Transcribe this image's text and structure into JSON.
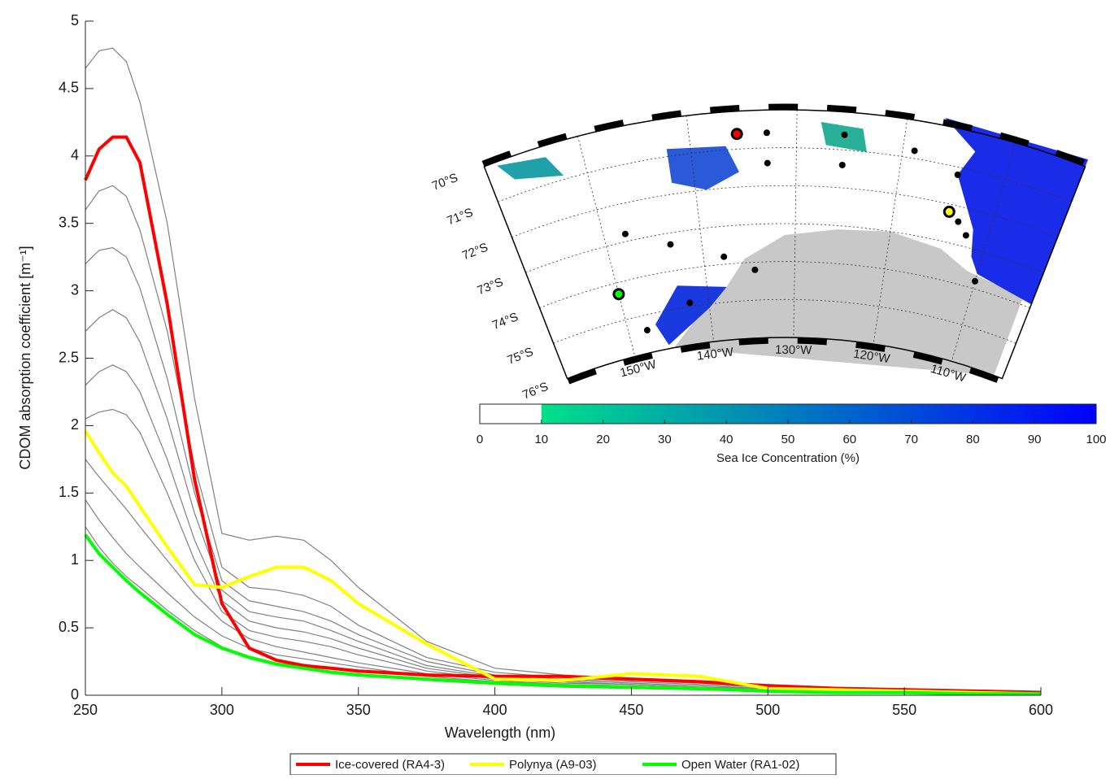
{
  "chart_data": {
    "type": "line",
    "x_label": "Wavelength (nm)",
    "y_label": "CDOM absorption coefficient [m⁻¹]",
    "x": [
      250,
      255,
      260,
      265,
      270,
      280,
      290,
      300,
      310,
      320,
      330,
      340,
      350,
      375,
      400,
      425,
      450,
      475,
      500,
      525,
      550,
      575,
      600
    ],
    "xlim": [
      250,
      600
    ],
    "xticks": [
      250,
      300,
      350,
      400,
      450,
      500,
      550,
      600
    ],
    "ylim": [
      0,
      5
    ],
    "yticks": [
      0,
      0.5,
      1,
      1.5,
      2,
      2.5,
      3,
      3.5,
      4,
      4.5,
      5
    ],
    "background_color": "#808080",
    "background_spectra": [
      [
        4.65,
        4.78,
        4.8,
        4.7,
        4.4,
        3.5,
        2.2,
        1.2,
        1.15,
        1.18,
        1.15,
        1.0,
        0.8,
        0.4,
        0.2,
        0.15,
        0.12,
        0.1,
        0.08,
        0.06,
        0.05,
        0.04,
        0.03
      ],
      [
        3.6,
        3.74,
        3.78,
        3.7,
        3.45,
        2.7,
        1.7,
        0.95,
        0.8,
        0.78,
        0.74,
        0.66,
        0.52,
        0.28,
        0.17,
        0.13,
        0.11,
        0.09,
        0.07,
        0.05,
        0.04,
        0.03,
        0.02
      ],
      [
        3.2,
        3.3,
        3.32,
        3.25,
        3.02,
        2.35,
        1.5,
        0.85,
        0.7,
        0.66,
        0.62,
        0.55,
        0.45,
        0.25,
        0.15,
        0.12,
        0.1,
        0.08,
        0.06,
        0.05,
        0.04,
        0.03,
        0.02
      ],
      [
        2.7,
        2.8,
        2.86,
        2.8,
        2.62,
        2.05,
        1.35,
        0.78,
        0.62,
        0.58,
        0.55,
        0.48,
        0.4,
        0.22,
        0.14,
        0.11,
        0.09,
        0.07,
        0.05,
        0.04,
        0.03,
        0.02,
        0.02
      ],
      [
        2.3,
        2.4,
        2.45,
        2.4,
        2.25,
        1.75,
        1.15,
        0.7,
        0.55,
        0.5,
        0.47,
        0.42,
        0.35,
        0.2,
        0.13,
        0.1,
        0.08,
        0.06,
        0.05,
        0.04,
        0.03,
        0.02,
        0.01
      ],
      [
        2.05,
        2.1,
        2.12,
        2.08,
        1.95,
        1.5,
        1.0,
        0.62,
        0.48,
        0.43,
        0.4,
        0.36,
        0.3,
        0.18,
        0.12,
        0.09,
        0.08,
        0.06,
        0.04,
        0.03,
        0.03,
        0.02,
        0.01
      ],
      [
        1.75,
        1.62,
        1.5,
        1.38,
        1.25,
        1.0,
        0.75,
        0.55,
        0.42,
        0.36,
        0.32,
        0.28,
        0.24,
        0.16,
        0.11,
        0.08,
        0.07,
        0.05,
        0.04,
        0.03,
        0.02,
        0.02,
        0.01
      ],
      [
        1.45,
        1.3,
        1.17,
        1.05,
        0.95,
        0.76,
        0.58,
        0.44,
        0.35,
        0.3,
        0.27,
        0.24,
        0.21,
        0.14,
        0.1,
        0.08,
        0.06,
        0.05,
        0.04,
        0.03,
        0.02,
        0.01,
        0.01
      ],
      [
        1.25,
        1.1,
        0.98,
        0.88,
        0.8,
        0.63,
        0.48,
        0.36,
        0.29,
        0.24,
        0.21,
        0.18,
        0.16,
        0.11,
        0.08,
        0.06,
        0.05,
        0.04,
        0.03,
        0.02,
        0.02,
        0.01,
        0.01
      ]
    ],
    "series": [
      {
        "name": "Ice-covered (RA4-3)",
        "color": "#ff0000",
        "values": [
          3.82,
          4.05,
          4.14,
          4.14,
          3.95,
          2.9,
          1.6,
          0.68,
          0.35,
          0.26,
          0.22,
          0.2,
          0.18,
          0.15,
          0.14,
          0.14,
          0.12,
          0.1,
          0.07,
          0.05,
          0.04,
          0.03,
          0.02
        ]
      },
      {
        "name": "Polynya (A9-03)",
        "color": "#ffff00",
        "values": [
          1.96,
          1.8,
          1.65,
          1.55,
          1.4,
          1.1,
          0.82,
          0.8,
          0.88,
          0.95,
          0.95,
          0.85,
          0.68,
          0.38,
          0.12,
          0.11,
          0.16,
          0.14,
          0.05,
          0.04,
          0.03,
          0.02,
          0.01
        ]
      },
      {
        "name": "Open Water (RA1-02)",
        "color": "#00ff00",
        "values": [
          1.19,
          1.05,
          0.95,
          0.85,
          0.76,
          0.6,
          0.45,
          0.35,
          0.28,
          0.23,
          0.2,
          0.17,
          0.15,
          0.12,
          0.09,
          0.07,
          0.06,
          0.05,
          0.03,
          0.02,
          0.02,
          0.01,
          0.01
        ]
      }
    ],
    "inset_map": {
      "lat_labels": [
        "70°S",
        "71°S",
        "72°S",
        "73°S",
        "74°S",
        "75°S",
        "76°S"
      ],
      "lon_labels": [
        "150°W",
        "140°W",
        "130°W",
        "120°W",
        "110°W"
      ],
      "colorbar": {
        "label": "Sea Ice Concentration (%)",
        "lim": [
          0,
          100
        ],
        "ticks": [
          0,
          10,
          20,
          30,
          40,
          50,
          60,
          70,
          80,
          90,
          100
        ],
        "threshold": 10,
        "low_color": "#00e08a",
        "high_color": "#0000ff"
      }
    }
  }
}
